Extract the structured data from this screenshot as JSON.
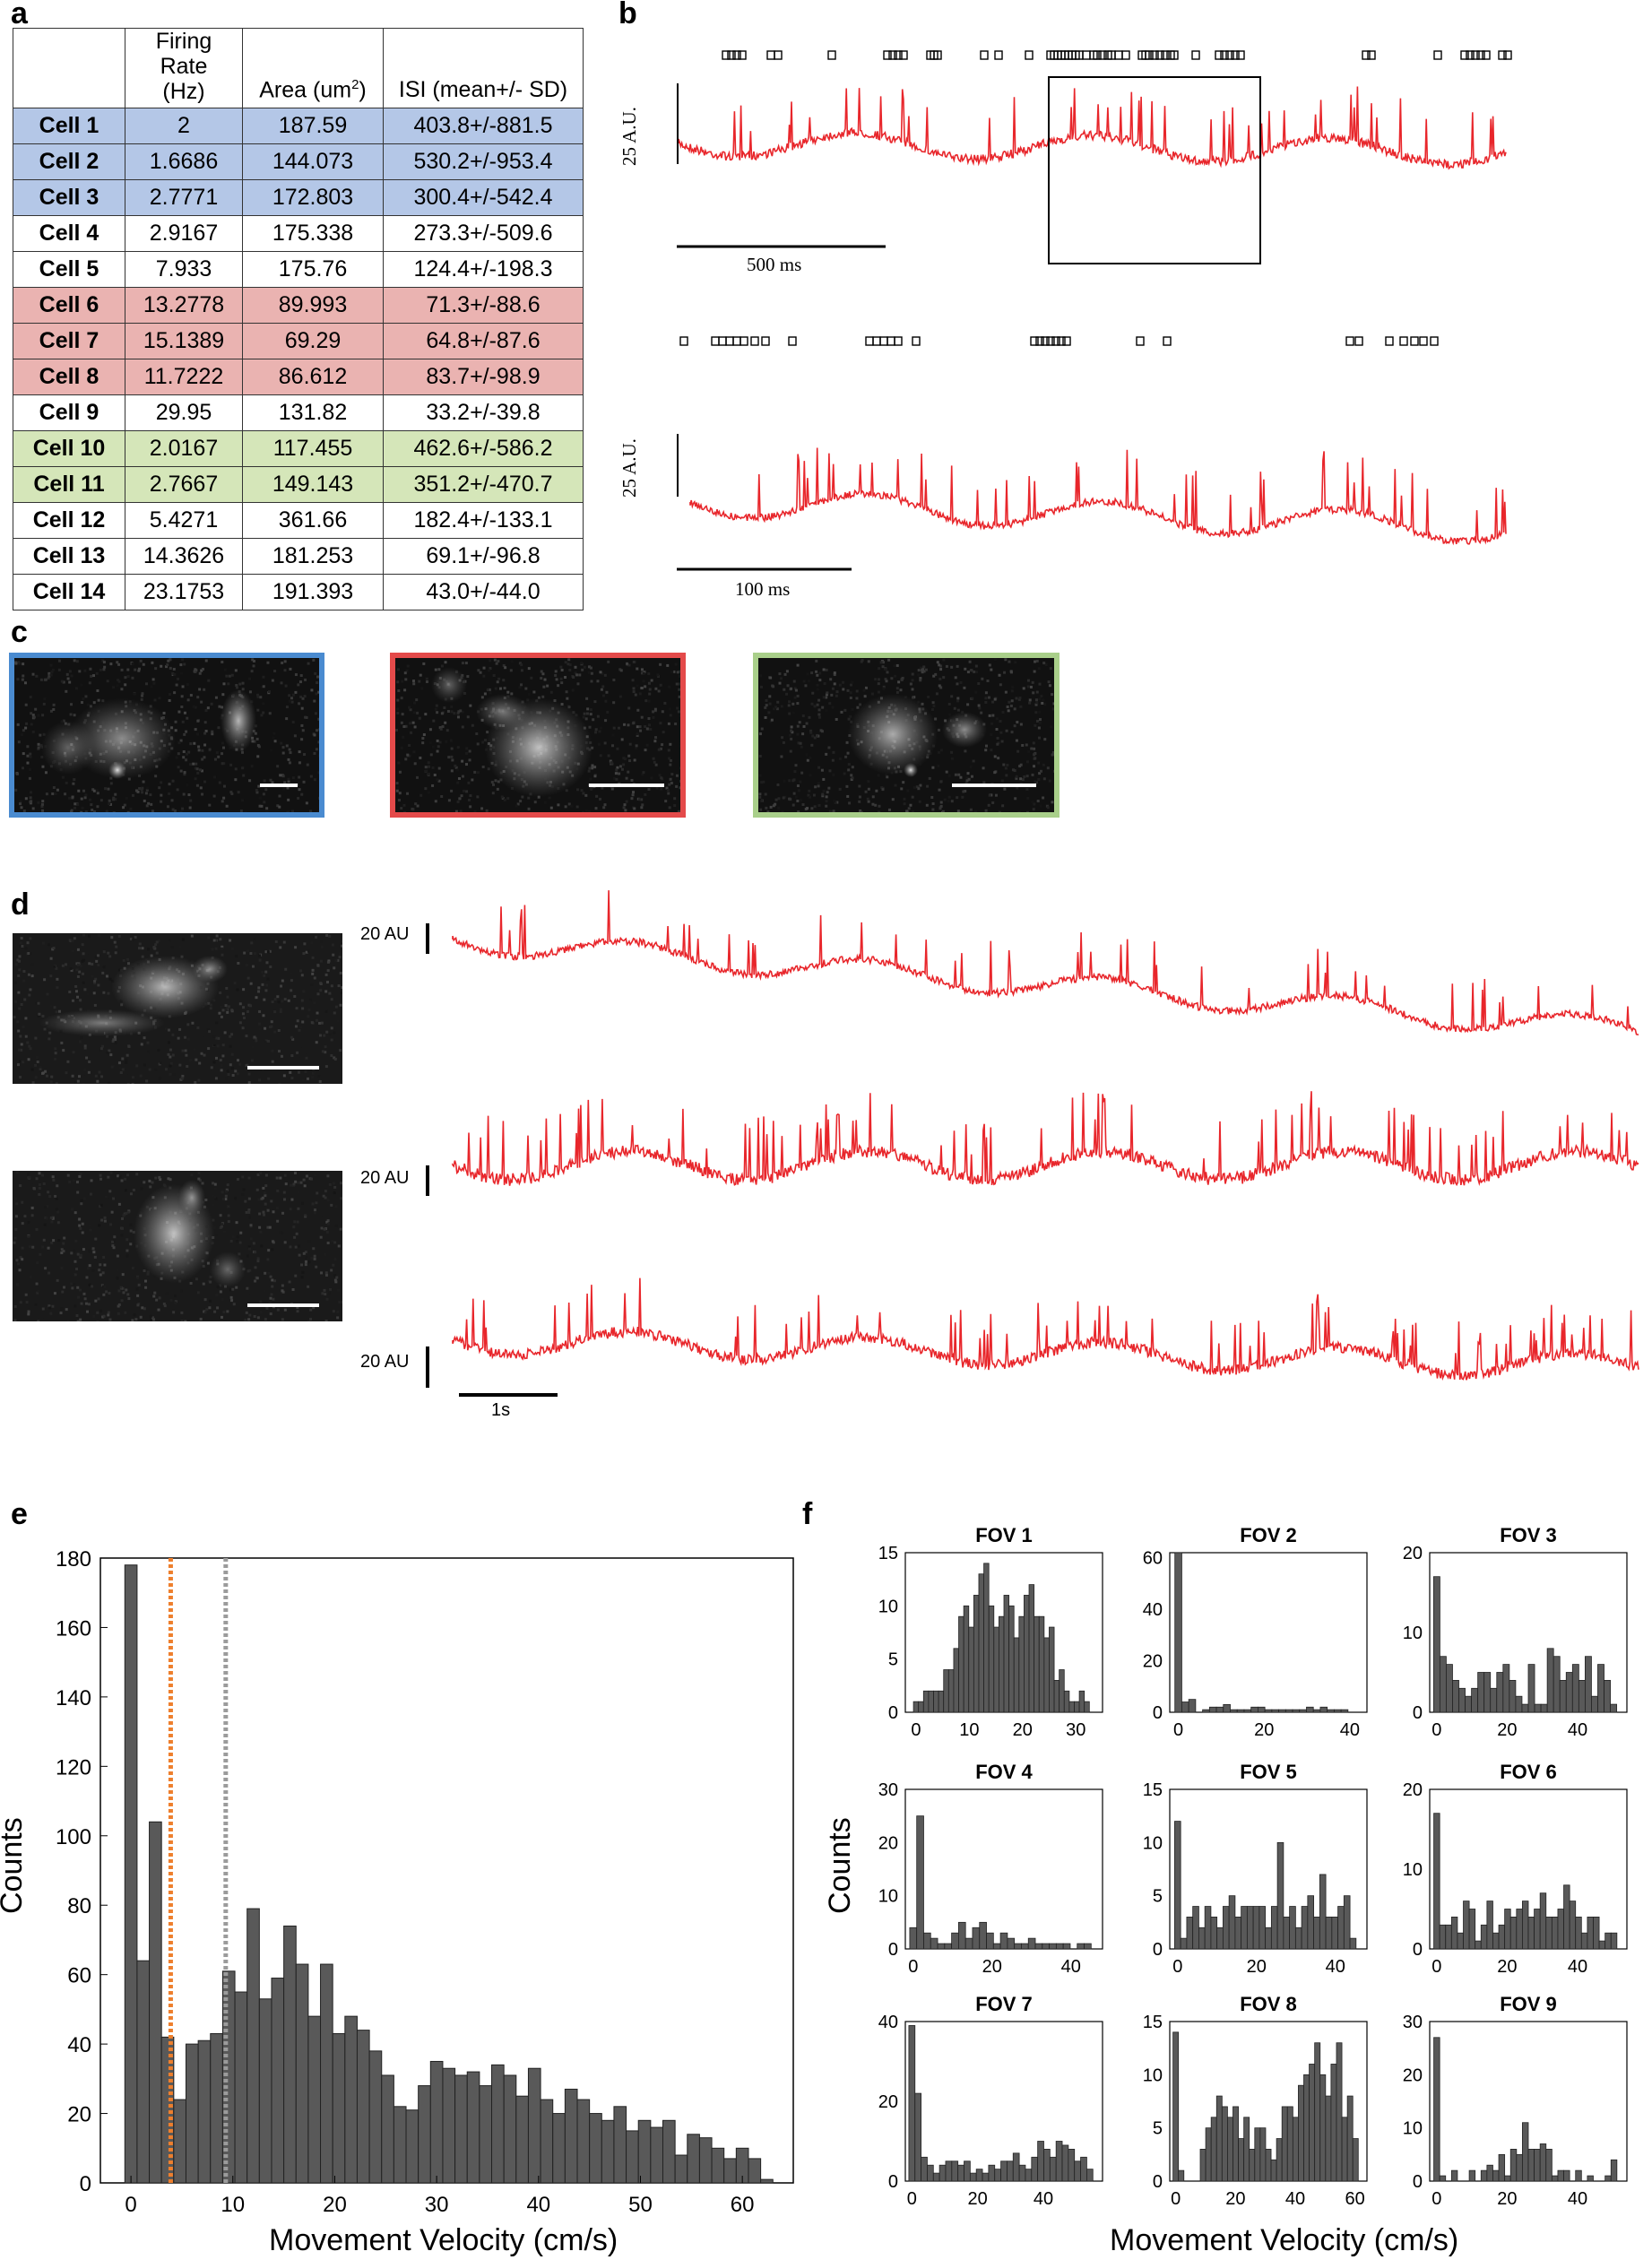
{
  "panels": {
    "a": "a",
    "b": "b",
    "c": "c",
    "d": "d",
    "e": "e",
    "f": "f"
  },
  "table": {
    "headers": [
      "",
      "Firing Rate (Hz)",
      "Area (um²)",
      "ISI (mean+/- SD)"
    ],
    "header_lines": {
      "fr1": "Firing Rate",
      "fr2": "(Hz)",
      "area": "Area (um",
      "area_sup": "2",
      "area_end": ")",
      "isi": "ISI (mean+/- SD)"
    },
    "rows": [
      {
        "cell": "Cell 1",
        "rate": "2",
        "area": "187.59",
        "isi": "403.8+/-881.5",
        "group": "blue"
      },
      {
        "cell": "Cell 2",
        "rate": "1.6686",
        "area": "144.073",
        "isi": "530.2+/-953.4",
        "group": "blue"
      },
      {
        "cell": "Cell 3",
        "rate": "2.7771",
        "area": "172.803",
        "isi": "300.4+/-542.4",
        "group": "blue"
      },
      {
        "cell": "Cell 4",
        "rate": "2.9167",
        "area": "175.338",
        "isi": "273.3+/-509.6",
        "group": ""
      },
      {
        "cell": "Cell 5",
        "rate": "7.933",
        "area": "175.76",
        "isi": "124.4+/-198.3",
        "group": ""
      },
      {
        "cell": "Cell 6",
        "rate": "13.2778",
        "area": "89.993",
        "isi": "71.3+/-88.6",
        "group": "red"
      },
      {
        "cell": "Cell 7",
        "rate": "15.1389",
        "area": "69.29",
        "isi": "64.8+/-87.6",
        "group": "red"
      },
      {
        "cell": "Cell 8",
        "rate": "11.7222",
        "area": "86.612",
        "isi": "83.7+/-98.9",
        "group": "red"
      },
      {
        "cell": "Cell 9",
        "rate": "29.95",
        "area": "131.82",
        "isi": "33.2+/-39.8",
        "group": ""
      },
      {
        "cell": "Cell 10",
        "rate": "2.0167",
        "area": "117.455",
        "isi": "462.6+/-586.2",
        "group": "green"
      },
      {
        "cell": "Cell 11",
        "rate": "2.7667",
        "area": "149.143",
        "isi": "351.2+/-470.7",
        "group": "green"
      },
      {
        "cell": "Cell 12",
        "rate": "5.4271",
        "area": "361.66",
        "isi": "182.4+/-133.1",
        "group": ""
      },
      {
        "cell": "Cell 13",
        "rate": "14.3626",
        "area": "181.253",
        "isi": "69.1+/-96.8",
        "group": ""
      },
      {
        "cell": "Cell 14",
        "rate": "23.1753",
        "area": "191.393",
        "isi": "43.0+/-44.0",
        "group": ""
      }
    ]
  },
  "panel_b": {
    "ylabel_top": "25 A.U.",
    "ylabel_bottom": "25 A.U.",
    "scale_top": "500 ms",
    "scale_bottom": "100 ms",
    "trace_color": "#e8262b"
  },
  "panel_c": {
    "frame_colors": [
      "#4a8bd0",
      "#e44a4a",
      "#a9cf8a"
    ]
  },
  "panel_d": {
    "scale_labels": [
      "20 AU",
      "20 AU",
      "20 AU"
    ],
    "time_scale": "1s",
    "trace_color": "#e8262b"
  },
  "panel_e": {
    "xlabel": "Movement Velocity (cm/s)",
    "ylabel": "Counts",
    "yticks": [
      "0",
      "20",
      "40",
      "60",
      "80",
      "100",
      "120",
      "140",
      "160",
      "180"
    ],
    "xticks": [
      "0",
      "10",
      "20",
      "30",
      "40",
      "50",
      "60"
    ],
    "threshold_colors": [
      "#ee7f2d",
      "#9b9b9b"
    ]
  },
  "panel_f": {
    "xlabel": "Movement Velocity (cm/s)",
    "ylabel": "Counts",
    "titles": [
      "FOV 1",
      "FOV 2",
      "FOV 3",
      "FOV 4",
      "FOV 5",
      "FOV 6",
      "FOV 7",
      "FOV 8",
      "FOV 9"
    ]
  },
  "chart_data": [
    {
      "type": "bar",
      "title": "",
      "xlabel": "Movement Velocity (cm/s)",
      "ylabel": "Counts",
      "xlim": [
        -3,
        65
      ],
      "ylim": [
        0,
        180
      ],
      "bin_centers": [
        0,
        1.2,
        2.4,
        3.6,
        4.8,
        6,
        7.2,
        8.4,
        9.6,
        10.8,
        12,
        13.2,
        14.4,
        15.6,
        16.8,
        18,
        19.2,
        20.4,
        21.6,
        22.8,
        24,
        25.2,
        26.4,
        27.6,
        28.8,
        30,
        31.2,
        32.4,
        33.6,
        34.8,
        36,
        37.2,
        38.4,
        39.6,
        40.8,
        42,
        43.2,
        44.4,
        45.6,
        46.8,
        48,
        49.2,
        50.4,
        51.6,
        52.8,
        54,
        55.2,
        56.4,
        57.6,
        58.8,
        60,
        61.2,
        62.4
      ],
      "values": [
        178,
        64,
        104,
        42,
        24,
        40,
        41,
        43,
        61,
        55,
        79,
        53,
        59,
        74,
        63,
        48,
        63,
        43,
        48,
        44,
        38,
        31,
        22,
        21,
        28,
        35,
        33,
        31,
        32,
        28,
        34,
        31,
        25,
        33,
        24,
        20,
        27,
        24,
        20,
        18,
        22,
        15,
        18,
        16,
        18,
        8,
        14,
        13,
        10,
        7,
        10,
        7,
        1
      ],
      "threshold_lines": [
        {
          "x": 3.9,
          "color": "#ee7f2d"
        },
        {
          "x": 9.3,
          "color": "#9b9b9b"
        }
      ]
    },
    {
      "type": "bar",
      "title": "FOV 1",
      "xlim": [
        -2,
        35
      ],
      "ylim": [
        0,
        15
      ],
      "xticks": [
        0,
        10,
        20,
        30
      ],
      "yticks": [
        0,
        5,
        10,
        15
      ],
      "values": [
        1,
        1,
        2,
        2,
        2,
        2,
        4,
        4,
        6,
        9,
        10,
        8,
        11,
        13,
        14,
        10,
        8,
        9,
        11,
        10,
        7,
        9,
        11,
        12,
        9,
        9,
        7,
        8,
        3,
        4,
        2,
        1,
        1,
        2,
        1
      ]
    },
    {
      "type": "bar",
      "title": "FOV 2",
      "xlim": [
        -2,
        44
      ],
      "ylim": [
        0,
        62
      ],
      "xticks": [
        0,
        20,
        40
      ],
      "yticks": [
        0,
        20,
        40,
        60
      ],
      "values": [
        62,
        4,
        5,
        0,
        1,
        2,
        2,
        3,
        1,
        1,
        1,
        2,
        2,
        1,
        1,
        1,
        1,
        1,
        1,
        2,
        1,
        2,
        1,
        1,
        1,
        0
      ]
    },
    {
      "type": "bar",
      "title": "FOV 3",
      "xlim": [
        -2,
        54
      ],
      "ylim": [
        0,
        20
      ],
      "xticks": [
        0,
        20,
        40
      ],
      "yticks": [
        0,
        10,
        20
      ],
      "values": [
        17,
        7,
        6,
        4,
        3,
        2,
        3,
        5,
        5,
        3,
        5,
        6,
        4,
        2,
        1,
        6,
        1,
        1,
        8,
        7,
        4,
        5,
        6,
        4,
        7,
        2,
        6,
        4,
        1
      ]
    },
    {
      "type": "bar",
      "title": "FOV 4",
      "xlim": [
        -2,
        48
      ],
      "ylim": [
        0,
        30
      ],
      "xticks": [
        0,
        20,
        40
      ],
      "yticks": [
        0,
        10,
        20,
        30
      ],
      "values": [
        4,
        25,
        3,
        2,
        1,
        1,
        3,
        5,
        2,
        4,
        5,
        3,
        1,
        3,
        2,
        1,
        1,
        2,
        1,
        1,
        1,
        1,
        1,
        0,
        1,
        1
      ]
    },
    {
      "type": "bar",
      "title": "FOV 5",
      "xlim": [
        -2,
        48
      ],
      "ylim": [
        0,
        15
      ],
      "xticks": [
        0,
        20,
        40
      ],
      "yticks": [
        0,
        5,
        10,
        15
      ],
      "values": [
        12,
        1,
        3,
        4,
        2,
        4,
        3,
        2,
        4,
        5,
        3,
        4,
        4,
        4,
        4,
        2,
        4,
        10,
        3,
        4,
        2,
        4,
        5,
        3,
        7,
        3,
        3,
        4,
        5,
        1
      ]
    },
    {
      "type": "bar",
      "title": "FOV 6",
      "xlim": [
        -2,
        54
      ],
      "ylim": [
        0,
        20
      ],
      "xticks": [
        0,
        20,
        40
      ],
      "yticks": [
        0,
        10,
        20
      ],
      "values": [
        17,
        3,
        3,
        4,
        2,
        6,
        5,
        1,
        3,
        6,
        2,
        3,
        5,
        4,
        5,
        6,
        4,
        5,
        7,
        4,
        4,
        5,
        8,
        6,
        4,
        2,
        4,
        4,
        1,
        2,
        2
      ]
    },
    {
      "type": "bar",
      "title": "FOV 7",
      "xlim": [
        -2,
        58
      ],
      "ylim": [
        0,
        40
      ],
      "xticks": [
        0,
        20,
        40
      ],
      "yticks": [
        0,
        20,
        40
      ],
      "values": [
        39,
        22,
        6,
        4,
        2,
        4,
        5,
        5,
        4,
        5,
        2,
        3,
        2,
        4,
        3,
        5,
        5,
        7,
        4,
        3,
        6,
        10,
        8,
        6,
        10,
        9,
        8,
        5,
        6,
        3
      ]
    },
    {
      "type": "bar",
      "title": "FOV 8",
      "xlim": [
        -2,
        64
      ],
      "ylim": [
        0,
        15
      ],
      "xticks": [
        0,
        20,
        40,
        60
      ],
      "yticks": [
        0,
        5,
        10,
        15
      ],
      "values": [
        14,
        1,
        0,
        0,
        0,
        3,
        5,
        6,
        8,
        7,
        6,
        7,
        4,
        6,
        3,
        5,
        5,
        3,
        2,
        4,
        7,
        7,
        6,
        9,
        10,
        11,
        13,
        10,
        8,
        11,
        13,
        6,
        8,
        4
      ]
    },
    {
      "type": "bar",
      "title": "FOV 9",
      "xlim": [
        -2,
        54
      ],
      "ylim": [
        0,
        30
      ],
      "xticks": [
        0,
        20,
        40
      ],
      "yticks": [
        0,
        10,
        20,
        30
      ],
      "values": [
        27,
        1,
        0,
        2,
        0,
        0,
        2,
        0,
        2,
        3,
        2,
        5,
        1,
        6,
        5,
        11,
        6,
        6,
        7,
        6,
        1,
        2,
        2,
        0,
        2,
        0,
        1,
        0,
        0,
        1,
        4
      ]
    }
  ]
}
